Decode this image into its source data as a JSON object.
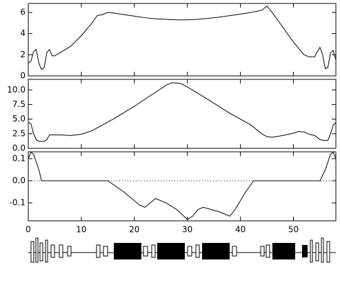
{
  "chart_data": [
    {
      "type": "line",
      "x": [
        0,
        0.5,
        1,
        1.5,
        2,
        2.5,
        3,
        3.5,
        4,
        4.5,
        5,
        6,
        8,
        10,
        12,
        13,
        14,
        15,
        16,
        18,
        20,
        22,
        24,
        26,
        28,
        30,
        32,
        34,
        36,
        38,
        40,
        42,
        44,
        45,
        46,
        48,
        50,
        52,
        53,
        54,
        54.5,
        55,
        55.5,
        56,
        56.5,
        57,
        57.5,
        58
      ],
      "values": [
        1.2,
        1.4,
        2.3,
        2.5,
        1.2,
        0.6,
        0.8,
        2.2,
        2.5,
        1.9,
        1.9,
        2.2,
        2.8,
        3.8,
        5.0,
        5.7,
        5.8,
        6.0,
        5.95,
        5.8,
        5.65,
        5.5,
        5.4,
        5.35,
        5.3,
        5.3,
        5.35,
        5.45,
        5.55,
        5.7,
        5.85,
        6.0,
        6.2,
        6.6,
        6.0,
        4.6,
        3.2,
        2.0,
        1.8,
        1.8,
        2.3,
        2.7,
        2.0,
        0.7,
        0.8,
        2.2,
        2.4,
        1.5
      ],
      "xlim": [
        0,
        58
      ],
      "xticks": [
        0,
        10,
        20,
        30,
        40,
        50
      ],
      "ylim": [
        0,
        6.85
      ],
      "yticks": [
        0,
        2,
        4,
        6
      ]
    },
    {
      "type": "line",
      "x": [
        0,
        0.5,
        1,
        1.5,
        2,
        3,
        3.5,
        4,
        6,
        8,
        10,
        12,
        14,
        16,
        20,
        24,
        26,
        27,
        28,
        29,
        30,
        34,
        38,
        42,
        44,
        45,
        46,
        48,
        50,
        51,
        52,
        53,
        54,
        55,
        56,
        56.5,
        57,
        57.5,
        58
      ],
      "values": [
        4.5,
        4.2,
        2.5,
        1.5,
        1.2,
        1.2,
        1.5,
        2.3,
        2.3,
        2.2,
        2.4,
        3.0,
        4.0,
        5.0,
        7.2,
        9.6,
        10.8,
        11.2,
        11.2,
        11.0,
        10.5,
        8.3,
        6.0,
        4.0,
        2.5,
        2.0,
        1.9,
        2.2,
        2.6,
        2.9,
        2.8,
        2.4,
        2.2,
        1.5,
        1.3,
        1.4,
        2.5,
        4.0,
        4.4
      ],
      "xlim": [
        0,
        58
      ],
      "xticks": [
        0,
        10,
        20,
        30,
        40,
        50
      ],
      "ylim": [
        0,
        11.8
      ],
      "yticks": [
        {
          "value": 0,
          "label": "0.0"
        },
        {
          "value": 2.5,
          "label": "2.5"
        },
        {
          "value": 5,
          "label": "5.0"
        },
        {
          "value": 7.5,
          "label": "7.5"
        },
        {
          "value": 10,
          "label": "10.0"
        }
      ]
    },
    {
      "type": "line",
      "x": [
        0,
        0.5,
        1,
        2,
        2.5,
        3,
        15,
        18,
        21,
        22,
        23,
        24,
        26,
        28,
        30,
        31,
        32,
        33,
        36,
        38,
        39,
        41,
        42.5,
        55,
        56,
        57,
        57.5,
        58
      ],
      "values": [
        0.1,
        0.13,
        0.12,
        0.05,
        0.0,
        0.0,
        0.0,
        -0.05,
        -0.11,
        -0.12,
        -0.1,
        -0.08,
        -0.1,
        -0.13,
        -0.175,
        -0.16,
        -0.13,
        -0.12,
        -0.14,
        -0.16,
        -0.13,
        -0.05,
        0.0,
        0.0,
        0.05,
        0.12,
        0.13,
        0.1
      ],
      "xlim": [
        0,
        58
      ],
      "xticks": [
        0,
        10,
        20,
        30,
        40,
        50
      ],
      "ylim": [
        -0.181,
        0.131
      ],
      "yticks": [
        -0.1,
        {
          "value": 0,
          "label": "0.0"
        },
        0.1
      ],
      "zero_line": true
    }
  ]
}
